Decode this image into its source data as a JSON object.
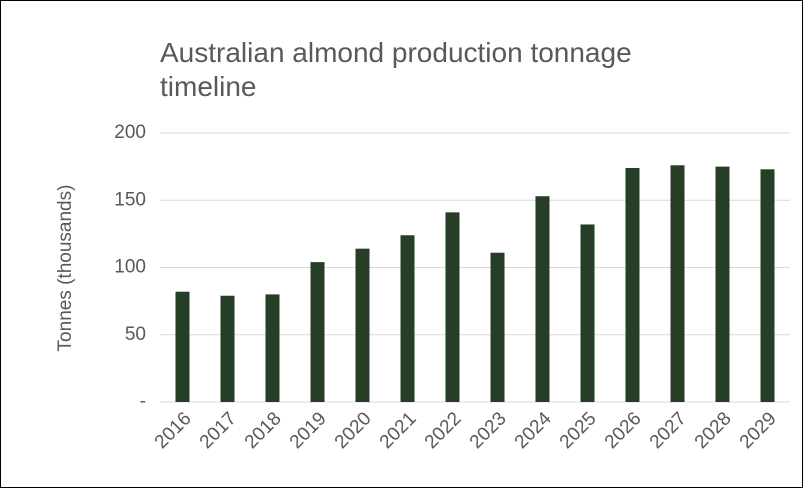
{
  "chart_data": {
    "type": "bar",
    "title": "Australian almond production tonnage timeline",
    "y_label": "Tonnes (thousands)",
    "categories": [
      "2016",
      "2017",
      "2018",
      "2019",
      "2020",
      "2021",
      "2022",
      "2023",
      "2024",
      "2025",
      "2026",
      "2027",
      "2028",
      "2029"
    ],
    "values": [
      82,
      79,
      80,
      104,
      114,
      124,
      141,
      111,
      153,
      132,
      174,
      176,
      175,
      173
    ],
    "color": "#263d26",
    "ylim": [
      0,
      200
    ],
    "yticks": [
      {
        "value": 0,
        "label": "-"
      },
      50,
      100,
      150,
      200
    ],
    "grid": true
  }
}
